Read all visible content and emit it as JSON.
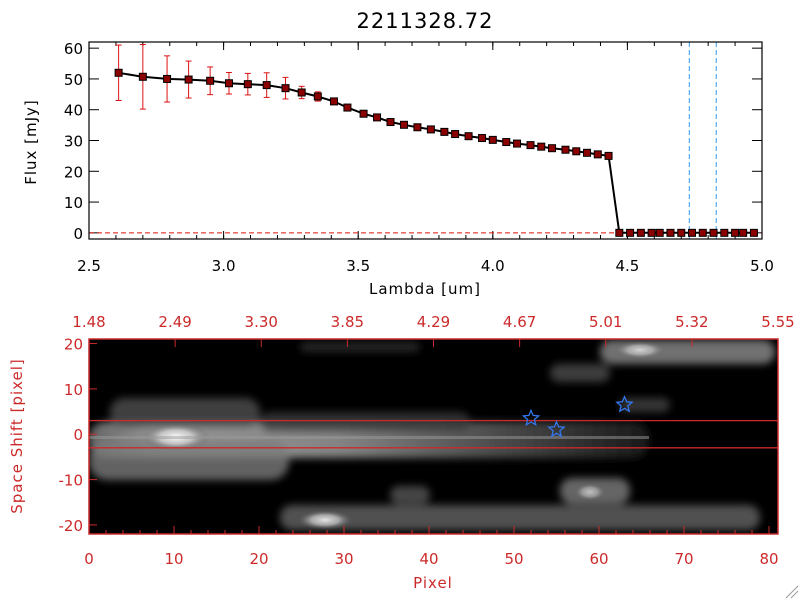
{
  "title": "2211328.72",
  "colors": {
    "axis_red": "#cc2a2a",
    "errorbar": "#dd1111",
    "marker_fill": "#8b0000",
    "line": "#000000",
    "guide_line": "#3399ee",
    "star": "#3377ee"
  },
  "chart_data": [
    {
      "type": "line",
      "ylabel": "Flux [mJy]",
      "xlabel": "Lambda [um]",
      "xlim": [
        2.5,
        5.0
      ],
      "ylim": [
        -2,
        62
      ],
      "xticks": [
        "2.5",
        "3.0",
        "3.5",
        "4.0",
        "4.5",
        "5.0"
      ],
      "xtick_values": [
        2.5,
        3.0,
        3.5,
        4.0,
        4.5,
        5.0
      ],
      "yticks": [
        "0",
        "10",
        "20",
        "30",
        "40",
        "50",
        "60"
      ],
      "ytick_values": [
        0,
        10,
        20,
        30,
        40,
        50,
        60
      ],
      "vlines": [
        4.73,
        4.83
      ],
      "hline": 0,
      "x": [
        2.61,
        2.7,
        2.79,
        2.87,
        2.95,
        3.02,
        3.09,
        3.16,
        3.23,
        3.29,
        3.35,
        3.41,
        3.46,
        3.52,
        3.57,
        3.62,
        3.67,
        3.72,
        3.77,
        3.82,
        3.86,
        3.91,
        3.96,
        4.0,
        4.05,
        4.09,
        4.14,
        4.18,
        4.22,
        4.27,
        4.31,
        4.35,
        4.39,
        4.43,
        4.47,
        4.51,
        4.55,
        4.59,
        4.62,
        4.66,
        4.7,
        4.74,
        4.78,
        4.82,
        4.86,
        4.9,
        4.93,
        4.97
      ],
      "y": [
        52.0,
        50.7,
        50.0,
        49.8,
        49.4,
        48.6,
        48.3,
        48.0,
        47.0,
        45.6,
        44.3,
        42.7,
        40.7,
        38.7,
        37.5,
        36.0,
        35.1,
        34.3,
        33.6,
        32.8,
        32.1,
        31.4,
        30.8,
        30.2,
        29.5,
        29.0,
        28.5,
        28.0,
        27.5,
        27.0,
        26.5,
        26.0,
        25.5,
        25.0,
        0,
        0,
        0,
        0,
        0,
        0,
        0,
        0,
        0,
        0,
        0,
        0,
        0,
        0
      ],
      "yerr": [
        9.0,
        10.5,
        7.5,
        6.0,
        4.5,
        3.5,
        3.5,
        4.0,
        3.5,
        2.0,
        1.5,
        1.0,
        1.0,
        0.8,
        0.8,
        0.8,
        0.8,
        0.7,
        0.7,
        0.7,
        0.7,
        0.7,
        0.6,
        0.6,
        0.6,
        0.6,
        0.6,
        0.6,
        0.6,
        0.6,
        0.6,
        0.6,
        0.6,
        0.6,
        0,
        0,
        0,
        0,
        0,
        0,
        0,
        0,
        0,
        0,
        0,
        0,
        0,
        0
      ]
    },
    {
      "type": "heatmap",
      "xlabel": "Pixel",
      "ylabel": "Space Shift [pixel]",
      "xlim": [
        0,
        80
      ],
      "ylim": [
        -22,
        21
      ],
      "xticks": [
        "0",
        "10",
        "20",
        "30",
        "40",
        "50",
        "60",
        "70",
        "80"
      ],
      "xtick_values": [
        0,
        10,
        20,
        30,
        40,
        50,
        60,
        70,
        80
      ],
      "yticks": [
        "20",
        "10",
        "0",
        "-10",
        "-20"
      ],
      "ytick_values": [
        20,
        10,
        0,
        -10,
        -20
      ],
      "top_ticks": [
        "1.48",
        "2.49",
        "3.30",
        "3.85",
        "4.29",
        "4.67",
        "5.01",
        "5.32",
        "5.55"
      ],
      "hlines": [
        3,
        -3
      ],
      "markers": [
        {
          "x": 52,
          "y": 3.5
        },
        {
          "x": 55,
          "y": 1
        },
        {
          "x": 63,
          "y": 6.5
        }
      ]
    }
  ]
}
